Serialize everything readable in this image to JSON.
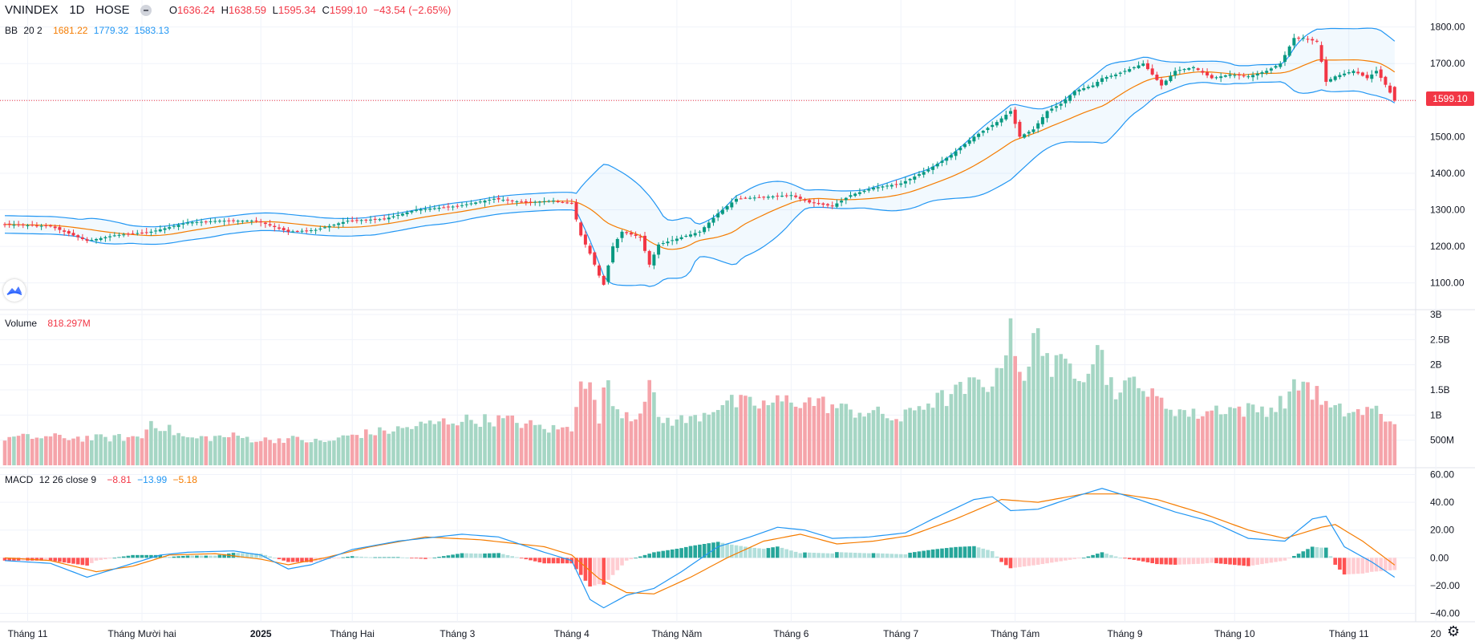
{
  "header": {
    "symbol": "VNINDEX",
    "interval": "1D",
    "exchange": "HOSE",
    "open_label": "O",
    "open": "1636.24",
    "high_label": "H",
    "high": "1638.59",
    "low_label": "L",
    "low": "1595.34",
    "close_label": "C",
    "close": "1599.10",
    "change": "−43.54 (−2.65%)"
  },
  "bb_legend": {
    "name": "BB",
    "params": "20 2",
    "basis": "1681.22",
    "upper": "1779.32",
    "lower": "1583.13"
  },
  "volume_legend": {
    "name": "Volume",
    "value": "818.297M"
  },
  "macd_legend": {
    "name": "MACD",
    "params": "12 26 close 9",
    "hist": "−8.81",
    "macd": "−13.99",
    "signal": "−5.18"
  },
  "last_price_tag": "1599.10",
  "colors": {
    "up": "#089981",
    "down": "#f23645",
    "bb_band": "#2196f3",
    "bb_basis": "#f57c00",
    "vol_up": "#a5d6c4",
    "vol_down": "#f5a4aa",
    "macd_line": "#2196f3",
    "signal_line": "#f57c00",
    "hist_up": "#26a69a",
    "hist_up_light": "#b2dfdb",
    "hist_down": "#ff5252",
    "hist_down_light": "#ffcdd2"
  },
  "icons": {
    "logo": "tradingview-logo-icon",
    "settings": "gear-icon",
    "hide": "minus-pill-icon"
  },
  "chart_data": [
    {
      "type": "candlestick",
      "title": "VNINDEX 1D HOSE",
      "y_ticks": [
        "1100.00",
        "1200.00",
        "1300.00",
        "1400.00",
        "1500.00",
        "1600.00",
        "1700.00",
        "1800.00"
      ],
      "ylim": [
        1040,
        1830
      ],
      "x_tick_labels": [
        "Tháng 11",
        "Tháng Mười hai",
        "2025",
        "Tháng Hai",
        "Tháng 3",
        "Tháng 4",
        "Tháng Năm",
        "Tháng 6",
        "Tháng 7",
        "Tháng Tám",
        "Tháng 9",
        "Tháng 10",
        "Tháng 11",
        "20"
      ],
      "x_ticks_bar_index": [
        5,
        30,
        56,
        76,
        99,
        124,
        147,
        172,
        196,
        221,
        245,
        269,
        294,
        313
      ],
      "bars_count": 305,
      "close_anchors": [
        [
          0,
          1260
        ],
        [
          10,
          1255
        ],
        [
          18,
          1215
        ],
        [
          24,
          1230
        ],
        [
          32,
          1240
        ],
        [
          40,
          1265
        ],
        [
          47,
          1270
        ],
        [
          55,
          1270
        ],
        [
          62,
          1240
        ],
        [
          68,
          1245
        ],
        [
          75,
          1270
        ],
        [
          83,
          1275
        ],
        [
          90,
          1300
        ],
        [
          99,
          1310
        ],
        [
          107,
          1330
        ],
        [
          114,
          1320
        ],
        [
          120,
          1325
        ],
        [
          124,
          1317
        ],
        [
          126,
          1230
        ],
        [
          128,
          1180
        ],
        [
          130,
          1120
        ],
        [
          131,
          1095
        ],
        [
          133,
          1200
        ],
        [
          135,
          1240
        ],
        [
          139,
          1225
        ],
        [
          141,
          1150
        ],
        [
          143,
          1205
        ],
        [
          148,
          1225
        ],
        [
          152,
          1240
        ],
        [
          156,
          1290
        ],
        [
          160,
          1330
        ],
        [
          166,
          1335
        ],
        [
          172,
          1340
        ],
        [
          176,
          1320
        ],
        [
          181,
          1310
        ],
        [
          185,
          1340
        ],
        [
          190,
          1360
        ],
        [
          196,
          1372
        ],
        [
          202,
          1410
        ],
        [
          207,
          1450
        ],
        [
          212,
          1500
        ],
        [
          217,
          1540
        ],
        [
          220,
          1570
        ],
        [
          222,
          1500
        ],
        [
          225,
          1520
        ],
        [
          228,
          1570
        ],
        [
          231,
          1590
        ],
        [
          234,
          1625
        ],
        [
          238,
          1640
        ],
        [
          240,
          1660
        ],
        [
          243,
          1670
        ],
        [
          246,
          1685
        ],
        [
          249,
          1700
        ],
        [
          253,
          1640
        ],
        [
          256,
          1680
        ],
        [
          260,
          1690
        ],
        [
          264,
          1660
        ],
        [
          268,
          1670
        ],
        [
          272,
          1665
        ],
        [
          276,
          1680
        ],
        [
          279,
          1700
        ],
        [
          282,
          1770
        ],
        [
          284,
          1770
        ],
        [
          287,
          1760
        ],
        [
          289,
          1650
        ],
        [
          291,
          1665
        ],
        [
          295,
          1680
        ],
        [
          298,
          1660
        ],
        [
          300,
          1680
        ],
        [
          302,
          1642
        ],
        [
          304,
          1599.1
        ]
      ],
      "last_candle": {
        "open": 1636.24,
        "high": 1638.59,
        "low": 1595.34,
        "close": 1599.1
      },
      "bb": {
        "period": 20,
        "stddev": 2,
        "last_basis": 1681.22,
        "last_upper": 1779.32,
        "last_lower": 1583.13
      },
      "current_price_line": 1599.1
    },
    {
      "type": "bar",
      "title": "Volume",
      "y_ticks": [
        "500M",
        "1B",
        "1.5B",
        "2B",
        "2.5B",
        "3B"
      ],
      "ylim": [
        0,
        3000000000
      ],
      "volume_anchors_millions": [
        [
          0,
          550
        ],
        [
          10,
          560
        ],
        [
          20,
          540
        ],
        [
          30,
          560
        ],
        [
          32,
          880
        ],
        [
          40,
          530
        ],
        [
          50,
          580
        ],
        [
          56,
          500
        ],
        [
          62,
          530
        ],
        [
          70,
          460
        ],
        [
          76,
          600
        ],
        [
          85,
          700
        ],
        [
          95,
          850
        ],
        [
          99,
          900
        ],
        [
          110,
          900
        ],
        [
          119,
          720
        ],
        [
          124,
          730
        ],
        [
          126,
          1900
        ],
        [
          127,
          1650
        ],
        [
          129,
          1350
        ],
        [
          130,
          750
        ],
        [
          131,
          1800
        ],
        [
          133,
          1200
        ],
        [
          138,
          950
        ],
        [
          141,
          1650
        ],
        [
          143,
          900
        ],
        [
          150,
          900
        ],
        [
          157,
          1250
        ],
        [
          166,
          1200
        ],
        [
          172,
          1300
        ],
        [
          178,
          1250
        ],
        [
          184,
          1100
        ],
        [
          190,
          1050
        ],
        [
          196,
          900
        ],
        [
          200,
          1200
        ],
        [
          206,
          1350
        ],
        [
          212,
          1600
        ],
        [
          217,
          1700
        ],
        [
          220,
          2900
        ],
        [
          223,
          1500
        ],
        [
          226,
          2850
        ],
        [
          229,
          1900
        ],
        [
          233,
          2000
        ],
        [
          236,
          1900
        ],
        [
          239,
          2450
        ],
        [
          241,
          1800
        ],
        [
          244,
          1400
        ],
        [
          248,
          1800
        ],
        [
          250,
          1400
        ],
        [
          254,
          1200
        ],
        [
          260,
          1000
        ],
        [
          266,
          1150
        ],
        [
          272,
          1100
        ],
        [
          278,
          1150
        ],
        [
          282,
          1500
        ],
        [
          284,
          1700
        ],
        [
          287,
          1400
        ],
        [
          290,
          1100
        ],
        [
          296,
          1050
        ],
        [
          300,
          1100
        ],
        [
          302,
          950
        ],
        [
          304,
          818.297
        ]
      ],
      "last_value": "818.297M"
    },
    {
      "type": "line",
      "title": "MACD",
      "series": [
        {
          "name": "MACD"
        },
        {
          "name": "Signal"
        },
        {
          "name": "Histogram"
        }
      ],
      "y_ticks": [
        "−40.00",
        "−20.00",
        "0.00",
        "20.00",
        "40.00",
        "60.00"
      ],
      "ylim": [
        -42,
        62
      ],
      "macd_anchors": [
        [
          0,
          -2
        ],
        [
          10,
          -4
        ],
        [
          18,
          -14
        ],
        [
          26,
          -6
        ],
        [
          34,
          2
        ],
        [
          40,
          4
        ],
        [
          50,
          5
        ],
        [
          56,
          2
        ],
        [
          62,
          -8
        ],
        [
          67,
          -5
        ],
        [
          76,
          6
        ],
        [
          86,
          12
        ],
        [
          100,
          17
        ],
        [
          108,
          15
        ],
        [
          118,
          4
        ],
        [
          124,
          -2
        ],
        [
          128,
          -30
        ],
        [
          131,
          -36
        ],
        [
          136,
          -27
        ],
        [
          142,
          -22
        ],
        [
          148,
          -10
        ],
        [
          156,
          8
        ],
        [
          163,
          15
        ],
        [
          169,
          22
        ],
        [
          175,
          20
        ],
        [
          181,
          14
        ],
        [
          189,
          15
        ],
        [
          197,
          18
        ],
        [
          203,
          28
        ],
        [
          212,
          42
        ],
        [
          216,
          44
        ],
        [
          220,
          34
        ],
        [
          226,
          35
        ],
        [
          235,
          45
        ],
        [
          240,
          50
        ],
        [
          248,
          42
        ],
        [
          256,
          33
        ],
        [
          264,
          26
        ],
        [
          272,
          14
        ],
        [
          280,
          12
        ],
        [
          286,
          28
        ],
        [
          289,
          30
        ],
        [
          293,
          8
        ],
        [
          299,
          -3
        ],
        [
          304,
          -13.99
        ]
      ],
      "signal_anchors": [
        [
          0,
          0
        ],
        [
          10,
          -2
        ],
        [
          20,
          -10
        ],
        [
          28,
          -6
        ],
        [
          36,
          2
        ],
        [
          46,
          3
        ],
        [
          56,
          -1
        ],
        [
          62,
          -5
        ],
        [
          70,
          0
        ],
        [
          80,
          8
        ],
        [
          92,
          15
        ],
        [
          104,
          13
        ],
        [
          118,
          8
        ],
        [
          124,
          2
        ],
        [
          130,
          -15
        ],
        [
          136,
          -25
        ],
        [
          142,
          -26
        ],
        [
          150,
          -14
        ],
        [
          158,
          0
        ],
        [
          166,
          12
        ],
        [
          174,
          17
        ],
        [
          182,
          10
        ],
        [
          190,
          12
        ],
        [
          198,
          16
        ],
        [
          208,
          28
        ],
        [
          218,
          42
        ],
        [
          226,
          40
        ],
        [
          236,
          46
        ],
        [
          244,
          46
        ],
        [
          252,
          42
        ],
        [
          262,
          32
        ],
        [
          272,
          20
        ],
        [
          280,
          14
        ],
        [
          288,
          22
        ],
        [
          291,
          24
        ],
        [
          297,
          12
        ],
        [
          304,
          -5.18
        ]
      ],
      "last": {
        "macd": -13.99,
        "signal": -5.18,
        "histogram": -8.81
      }
    }
  ]
}
